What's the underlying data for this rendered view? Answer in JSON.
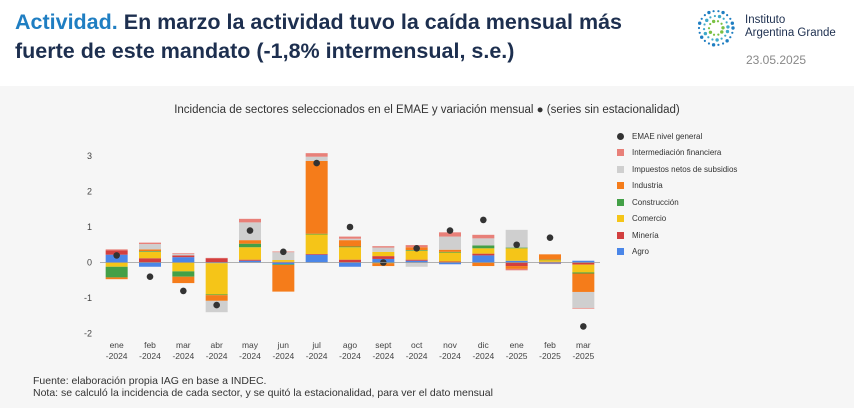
{
  "header": {
    "title_accent": "Actividad.",
    "title_rest": " En marzo la actividad tuvo la caída mensual más fuerte de este mandato (-1,8% intermensual, s.e.)",
    "org_line1": "Instituto",
    "org_line2": "Argentina Grande",
    "date": "23.05.2025",
    "logo_icon": "dotted-circle-logo-icon"
  },
  "chart_data": {
    "type": "bar",
    "title": "Incidencia de sectores seleccionados en el EMAE y variación mensual ● (series sin estacionalidad)",
    "categories": [
      [
        "ene",
        "-2024"
      ],
      [
        "feb",
        "-2024"
      ],
      [
        "mar",
        "-2024"
      ],
      [
        "abr",
        "-2024"
      ],
      [
        "may",
        "-2024"
      ],
      [
        "jun",
        "-2024"
      ],
      [
        "jul",
        "-2024"
      ],
      [
        "ago",
        "-2024"
      ],
      [
        "sept",
        "-2024"
      ],
      [
        "oct",
        "-2024"
      ],
      [
        "nov",
        "-2024"
      ],
      [
        "dic",
        "-2024"
      ],
      [
        "ene",
        "-2025"
      ],
      [
        "feb",
        "-2025"
      ],
      [
        "mar",
        "-2025"
      ]
    ],
    "yticks": [
      -2,
      -1,
      0,
      1,
      2,
      3
    ],
    "ylim": [
      -2.1,
      3.3
    ],
    "series": [
      {
        "name": "Agro",
        "color": "#4a86e8",
        "values": [
          0.22,
          -0.12,
          0.15,
          -0.02,
          0.05,
          -0.05,
          0.22,
          -0.12,
          0.1,
          0.05,
          -0.05,
          0.2,
          0.05,
          -0.03,
          0.05
        ]
      },
      {
        "name": "Minería",
        "color": "#d23f3f",
        "values": [
          0.12,
          0.12,
          0.05,
          0.12,
          0.03,
          0.02,
          0.02,
          0.08,
          0.08,
          0.03,
          0.03,
          0.05,
          -0.1,
          0.02,
          -0.06
        ]
      },
      {
        "name": "Comercio",
        "color": "#f5c518",
        "values": [
          -0.12,
          0.18,
          -0.25,
          -0.88,
          0.35,
          0.05,
          0.55,
          0.35,
          0.12,
          0.25,
          0.25,
          0.15,
          0.35,
          0.05,
          -0.22
        ]
      },
      {
        "name": "Construcción",
        "color": "#43a047",
        "values": [
          -0.3,
          0.02,
          -0.15,
          -0.02,
          0.1,
          -0.02,
          0.02,
          0.02,
          -0.02,
          0.02,
          0.02,
          0.08,
          0.02,
          0.01,
          -0.03
        ]
      },
      {
        "name": "Industria",
        "color": "#f57c1a",
        "values": [
          -0.05,
          0.05,
          -0.18,
          -0.16,
          0.1,
          -0.75,
          2.05,
          0.18,
          -0.08,
          0.08,
          0.06,
          -0.1,
          -0.08,
          0.15,
          -0.52
        ]
      },
      {
        "name": "Impuestos netos de subsidios",
        "color": "#cfcfcf",
        "values": [
          0.0,
          0.15,
          0.04,
          -0.32,
          0.5,
          0.22,
          0.12,
          0.04,
          0.12,
          -0.12,
          0.37,
          0.2,
          0.5,
          0.0,
          -0.45
        ]
      },
      {
        "name": "Intermediación financiera",
        "color": "#e88079",
        "values": [
          0.03,
          0.04,
          0.02,
          0.01,
          0.1,
          0.02,
          0.1,
          0.06,
          0.04,
          0.06,
          0.12,
          0.1,
          -0.04,
          -0.01,
          -0.02
        ]
      }
    ],
    "emae": {
      "name": "EMAE nivel general",
      "color": "#333333",
      "values": [
        0.2,
        -0.4,
        -0.8,
        -1.2,
        0.9,
        0.3,
        2.8,
        1.0,
        0.0,
        0.4,
        0.9,
        1.2,
        0.5,
        0.7,
        -1.8
      ]
    },
    "legend": [
      {
        "label": "EMAE nivel general",
        "color": "#333333",
        "shape": "dot"
      },
      {
        "label": "Intermediación financiera",
        "color": "#e88079",
        "shape": "square"
      },
      {
        "label": "Impuestos netos de subsidios",
        "color": "#cfcfcf",
        "shape": "square"
      },
      {
        "label": "Industria",
        "color": "#f57c1a",
        "shape": "square"
      },
      {
        "label": "Construcción",
        "color": "#43a047",
        "shape": "square"
      },
      {
        "label": "Comercio",
        "color": "#f5c518",
        "shape": "square"
      },
      {
        "label": "Minería",
        "color": "#d23f3f",
        "shape": "square"
      },
      {
        "label": "Agro",
        "color": "#4a86e8",
        "shape": "square"
      }
    ],
    "legend_placement": "right",
    "grid": false
  },
  "footer": {
    "source": "Fuente: elaboración propia IAG en base a INDEC.",
    "note": "Nota: se calculó la incidencia de cada sector, y se quitó la estacionalidad, para ver el dato mensual"
  }
}
